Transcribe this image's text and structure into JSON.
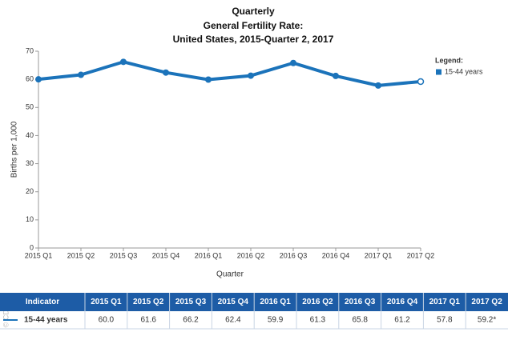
{
  "chart_data": {
    "type": "line",
    "title_lines": [
      "Quarterly",
      "General Fertility Rate:",
      "United States, 2015-Quarter 2, 2017"
    ],
    "y_label": "Births per 1,000",
    "x_label": "Quarter",
    "legend_title": "Legend:",
    "legend_position": "right",
    "categories": [
      "2015 Q1",
      "2015 Q2",
      "2015 Q3",
      "2015 Q4",
      "2016 Q1",
      "2016 Q2",
      "2016 Q3",
      "2016 Q4",
      "2017 Q1",
      "2017 Q2"
    ],
    "series": [
      {
        "name": "15-44 years",
        "color": "#1b73ba",
        "values": [
          60.0,
          61.6,
          66.2,
          62.4,
          59.9,
          61.3,
          65.8,
          61.2,
          57.8,
          59.2
        ]
      }
    ],
    "ylim": [
      0,
      70
    ],
    "yticks": [
      0,
      10,
      20,
      30,
      40,
      50,
      60,
      70
    ],
    "grid": false
  },
  "table": {
    "header": [
      "Indicator",
      "2015 Q1",
      "2015 Q2",
      "2015 Q3",
      "2015 Q4",
      "2016 Q1",
      "2016 Q2",
      "2016 Q3",
      "2016 Q4",
      "2017 Q1",
      "2017 Q2"
    ],
    "rows": [
      [
        "15-44 years",
        "60.0",
        "61.6",
        "66.2",
        "62.4",
        "59.9",
        "61.3",
        "65.8",
        "61.2",
        "57.8",
        "59.2*"
      ]
    ]
  },
  "credit": "© CDC"
}
